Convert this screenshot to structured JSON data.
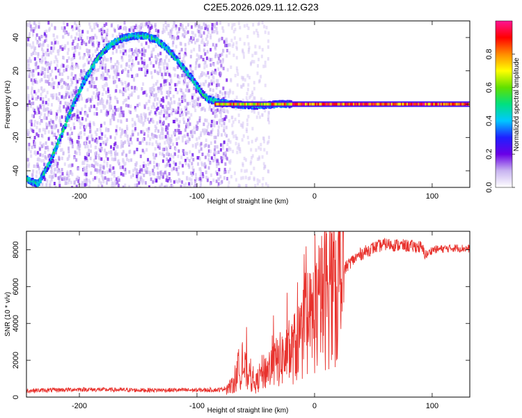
{
  "title": "C2E5.2026.029.11.12.G23",
  "chart_data": [
    {
      "type": "heatmap",
      "xlabel": "Height of straight line (km)",
      "ylabel": "Frequency (Hz)",
      "xlim": [
        -245,
        132
      ],
      "ylim": [
        -50,
        50
      ],
      "xticks": [
        -200,
        -100,
        0,
        100
      ],
      "yticks": [
        -40,
        -20,
        0,
        20,
        40
      ],
      "colorbar": {
        "label": "Normalized spectral amplitude",
        "range": [
          0,
          1
        ],
        "ticks": [
          "0.0",
          "0.2",
          "0.4",
          "0.6",
          "0.8"
        ],
        "colors": [
          "#ffffff",
          "#c8b4f0",
          "#6a00e6",
          "#1f1fff",
          "#00c8ff",
          "#00e080",
          "#60e000",
          "#ffff00",
          "#ff8c00",
          "#ff0000",
          "#ff1493"
        ]
      },
      "ridge": {
        "x": [
          -245,
          -235,
          -225,
          -215,
          -205,
          -195,
          -185,
          -175,
          -165,
          -155,
          -145,
          -135,
          -125,
          -115,
          -105,
          -95,
          -90,
          -80,
          -70,
          -50,
          -30,
          0,
          132
        ],
        "frequency_hz": [
          -45,
          -48,
          -35,
          -18,
          0,
          15,
          27,
          35,
          39,
          41,
          41,
          39,
          33,
          25,
          16,
          6,
          3,
          1,
          0,
          -1,
          0,
          0,
          0
        ]
      },
      "carrier_frequency_hz": 0,
      "noise_region_x": [
        -245,
        -75
      ]
    },
    {
      "type": "line",
      "xlabel": "Height of straight line (km)",
      "ylabel": "SNR (10 * v/v)",
      "xlim": [
        -245,
        132
      ],
      "ylim": [
        0,
        9000
      ],
      "xticks": [
        -200,
        -100,
        0,
        100
      ],
      "yticks": [
        0,
        2000,
        4000,
        6000,
        8000
      ],
      "color": "#e8322d",
      "profile": {
        "x": [
          -245,
          -200,
          -150,
          -100,
          -80,
          -70,
          -65,
          -60,
          -55,
          -50,
          -45,
          -40,
          -30,
          -20,
          -10,
          0,
          10,
          20,
          30,
          40,
          50,
          60,
          70,
          80,
          90,
          95,
          100,
          110,
          120,
          132
        ],
        "y": [
          350,
          420,
          380,
          380,
          400,
          600,
          1500,
          1600,
          900,
          700,
          1300,
          1500,
          2000,
          2400,
          3400,
          4500,
          5600,
          6500,
          7300,
          7800,
          8100,
          8300,
          8250,
          8200,
          8150,
          7700,
          8000,
          8050,
          8100,
          8050
        ]
      }
    }
  ]
}
